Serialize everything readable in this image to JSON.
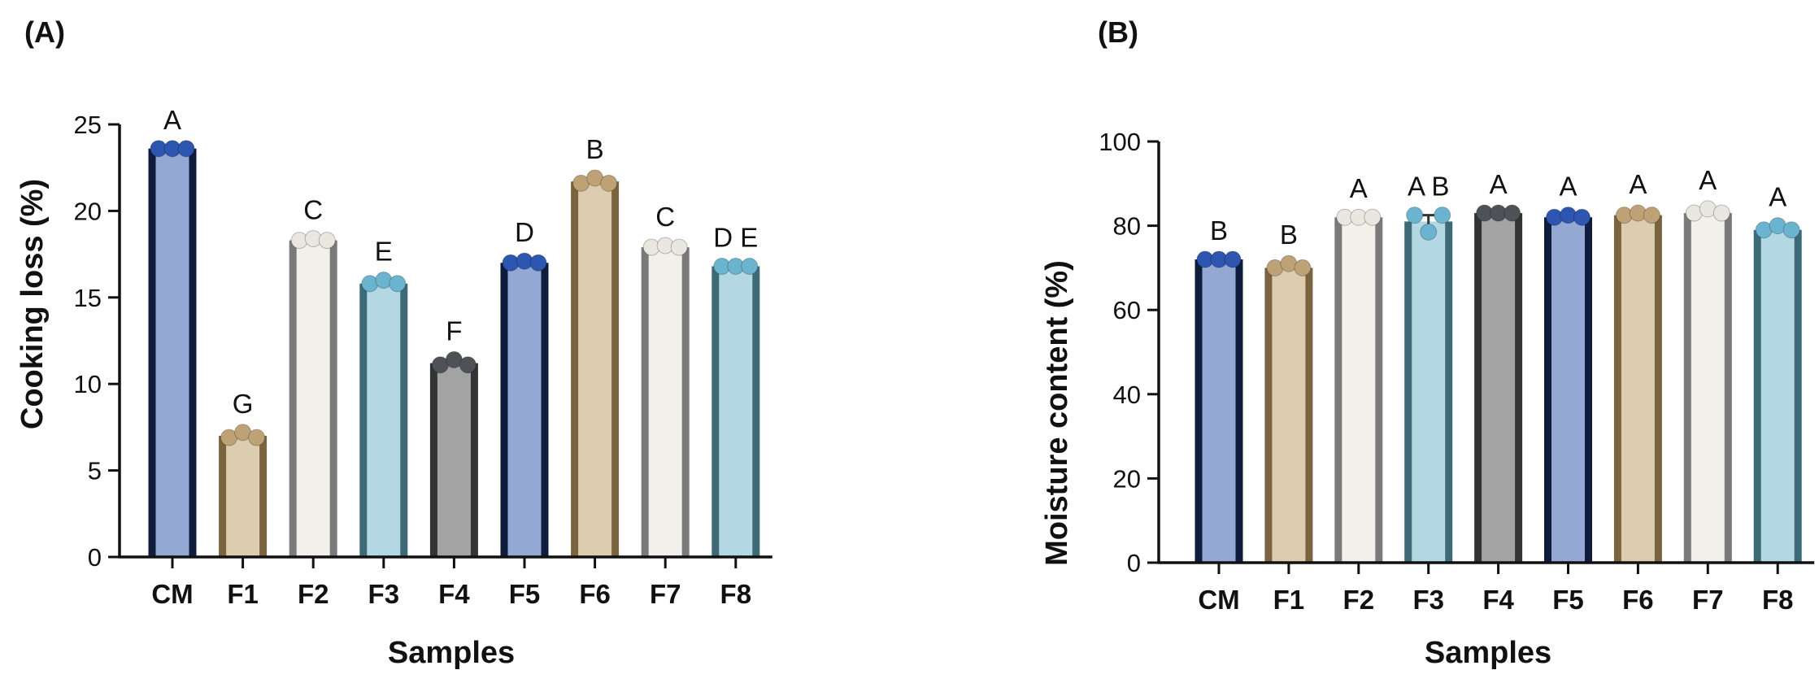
{
  "palette": {
    "CM": {
      "fill": "#94a8d4",
      "edge": "#101c3c",
      "dot": "#2c56b0"
    },
    "F1": {
      "fill": "#dccdb0",
      "edge": "#7a6440",
      "dot": "#bea275"
    },
    "F2": {
      "fill": "#f2f0eb",
      "edge": "#7a7a7a",
      "dot": "#e9e7e0"
    },
    "F3": {
      "fill": "#b3d8e4",
      "edge": "#3e6a78",
      "dot": "#6bb4cf"
    },
    "F4": {
      "fill": "#a3a3a3",
      "edge": "#333333",
      "dot": "#4e5257"
    },
    "F5": {
      "fill": "#94a8d4",
      "edge": "#101c3c",
      "dot": "#2c56b0"
    },
    "F6": {
      "fill": "#dccdb0",
      "edge": "#7a6440",
      "dot": "#bea275"
    },
    "F7": {
      "fill": "#f2f0eb",
      "edge": "#7a7a7a",
      "dot": "#e9e7e0"
    },
    "F8": {
      "fill": "#b3d8e4",
      "edge": "#3e6a78",
      "dot": "#6bb4cf"
    }
  },
  "chart_data": [
    {
      "panel": "(A)",
      "type": "bar",
      "title": "",
      "xlabel": "Samples",
      "ylabel": "Cooking loss (%)",
      "ylim": [
        0,
        25
      ],
      "yticks": [
        0,
        5,
        10,
        15,
        20,
        25
      ],
      "grid": false,
      "categories": [
        "CM",
        "F1",
        "F2",
        "F3",
        "F4",
        "F5",
        "F6",
        "F7",
        "F8"
      ],
      "values": [
        23.6,
        7.0,
        18.3,
        15.8,
        11.2,
        17.0,
        21.7,
        17.9,
        16.8
      ],
      "replicates": [
        [
          23.6,
          23.6,
          23.6
        ],
        [
          6.9,
          7.2,
          6.9
        ],
        [
          18.3,
          18.4,
          18.3
        ],
        [
          15.8,
          16.0,
          15.8
        ],
        [
          11.1,
          11.4,
          11.1
        ],
        [
          17.0,
          17.1,
          17.0
        ],
        [
          21.6,
          21.9,
          21.6
        ],
        [
          17.9,
          18.0,
          17.9
        ],
        [
          16.8,
          16.8,
          16.8
        ]
      ],
      "annotations": [
        "A",
        "G",
        "C",
        "E",
        "F",
        "D",
        "B",
        "C",
        "D E"
      ]
    },
    {
      "panel": "(B)",
      "type": "bar",
      "title": "",
      "xlabel": "Samples",
      "ylabel": "Moisture content (%)",
      "ylim": [
        0,
        100
      ],
      "yticks": [
        0,
        20,
        40,
        60,
        80,
        100
      ],
      "grid": false,
      "categories": [
        "CM",
        "F1",
        "F2",
        "F3",
        "F4",
        "F5",
        "F6",
        "F7",
        "F8"
      ],
      "values": [
        72,
        70,
        82,
        81,
        83,
        82,
        82.5,
        83,
        79
      ],
      "replicates": [
        [
          72,
          72,
          72
        ],
        [
          70,
          71,
          70
        ],
        [
          82,
          82,
          82
        ],
        [
          82.5,
          78.5,
          82.5
        ],
        [
          83,
          83,
          83
        ],
        [
          82,
          82.5,
          82
        ],
        [
          82.5,
          83,
          82.5
        ],
        [
          83,
          84,
          83
        ],
        [
          79,
          80,
          79
        ]
      ],
      "annotations": [
        "B",
        "B",
        "A",
        "A B",
        "A",
        "A",
        "A",
        "A",
        "A"
      ]
    }
  ]
}
